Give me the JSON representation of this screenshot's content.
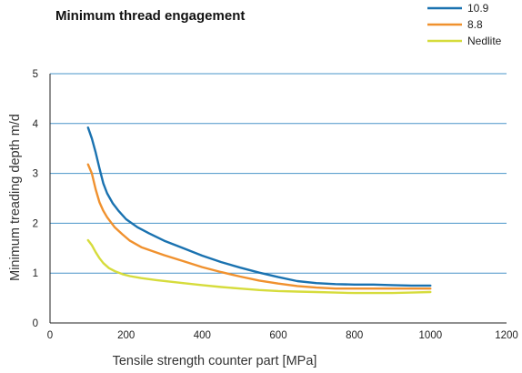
{
  "chart_data": {
    "type": "line",
    "title": "Minimum thread engagement",
    "xlabel": "Tensile strength counter part [MPa]",
    "ylabel": "Minimum treading depth m/d",
    "xlim": [
      0,
      1200
    ],
    "ylim": [
      0,
      5
    ],
    "xticks": [
      0,
      200,
      400,
      600,
      800,
      1000,
      1200
    ],
    "yticks": [
      0,
      1,
      2,
      3,
      4,
      5
    ],
    "grid": "horizontal",
    "legend_position": "top-right",
    "series": [
      {
        "name": "10.9",
        "color": "#1a72b0",
        "points": [
          [
            100,
            3.92
          ],
          [
            110,
            3.7
          ],
          [
            120,
            3.42
          ],
          [
            130,
            3.1
          ],
          [
            140,
            2.8
          ],
          [
            150,
            2.6
          ],
          [
            165,
            2.4
          ],
          [
            180,
            2.25
          ],
          [
            200,
            2.08
          ],
          [
            230,
            1.92
          ],
          [
            260,
            1.8
          ],
          [
            300,
            1.65
          ],
          [
            350,
            1.5
          ],
          [
            400,
            1.35
          ],
          [
            450,
            1.22
          ],
          [
            500,
            1.11
          ],
          [
            550,
            1.01
          ],
          [
            600,
            0.92
          ],
          [
            650,
            0.84
          ],
          [
            700,
            0.8
          ],
          [
            750,
            0.78
          ],
          [
            800,
            0.77
          ],
          [
            850,
            0.77
          ],
          [
            900,
            0.76
          ],
          [
            950,
            0.75
          ],
          [
            1000,
            0.75
          ]
        ]
      },
      {
        "name": "8.8",
        "color": "#f0912e",
        "points": [
          [
            100,
            3.18
          ],
          [
            110,
            3.0
          ],
          [
            120,
            2.68
          ],
          [
            130,
            2.42
          ],
          [
            140,
            2.25
          ],
          [
            150,
            2.12
          ],
          [
            170,
            1.92
          ],
          [
            190,
            1.78
          ],
          [
            210,
            1.65
          ],
          [
            240,
            1.52
          ],
          [
            270,
            1.44
          ],
          [
            300,
            1.36
          ],
          [
            350,
            1.24
          ],
          [
            400,
            1.12
          ],
          [
            450,
            1.02
          ],
          [
            500,
            0.93
          ],
          [
            550,
            0.85
          ],
          [
            600,
            0.79
          ],
          [
            650,
            0.74
          ],
          [
            700,
            0.71
          ],
          [
            750,
            0.69
          ],
          [
            800,
            0.69
          ],
          [
            850,
            0.69
          ],
          [
            900,
            0.69
          ],
          [
            950,
            0.69
          ],
          [
            1000,
            0.69
          ]
        ]
      },
      {
        "name": "Nedlite",
        "color": "#d6dc3c",
        "points": [
          [
            100,
            1.66
          ],
          [
            110,
            1.56
          ],
          [
            120,
            1.42
          ],
          [
            130,
            1.3
          ],
          [
            140,
            1.2
          ],
          [
            155,
            1.1
          ],
          [
            170,
            1.04
          ],
          [
            190,
            0.98
          ],
          [
            210,
            0.94
          ],
          [
            240,
            0.9
          ],
          [
            280,
            0.86
          ],
          [
            350,
            0.8
          ],
          [
            400,
            0.76
          ],
          [
            450,
            0.72
          ],
          [
            500,
            0.69
          ],
          [
            550,
            0.66
          ],
          [
            600,
            0.64
          ],
          [
            650,
            0.63
          ],
          [
            700,
            0.62
          ],
          [
            750,
            0.61
          ],
          [
            800,
            0.6
          ],
          [
            850,
            0.6
          ],
          [
            900,
            0.6
          ],
          [
            950,
            0.61
          ],
          [
            1000,
            0.62
          ]
        ]
      }
    ]
  }
}
